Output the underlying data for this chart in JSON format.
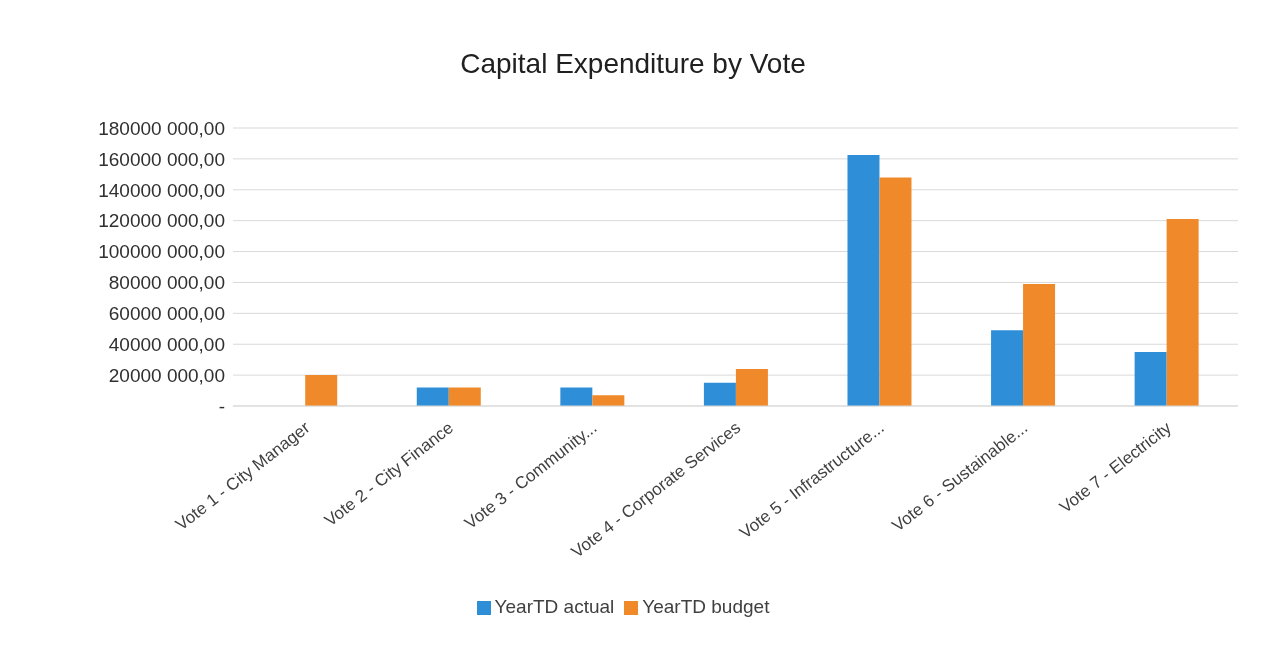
{
  "chart_data": {
    "type": "bar",
    "title": "Capital Expenditure by Vote",
    "categories": [
      "Vote 1 - City Manager",
      "Vote 2 - City Finance",
      "Vote 3 - Community...",
      "Vote 4 - Corporate Services",
      "Vote 5 - Infrastructure...",
      "Vote 6 - Sustainable...",
      "Vote 7 - Electricity"
    ],
    "series": [
      {
        "name": "YearTD actual",
        "color": "#2e8fd8",
        "values": [
          0,
          12000000,
          12000000,
          15000000,
          162500000,
          49000000,
          35000000
        ]
      },
      {
        "name": "YearTD budget",
        "color": "#f0892a",
        "values": [
          20000000,
          12000000,
          7000000,
          24000000,
          148000000,
          79000000,
          121000000
        ]
      }
    ],
    "ylim": [
      0,
      180000000
    ],
    "yticks": [
      {
        "value": 0,
        "label": "-"
      },
      {
        "value": 20000000,
        "label": "20000 000,00"
      },
      {
        "value": 40000000,
        "label": "40000 000,00"
      },
      {
        "value": 60000000,
        "label": "60000 000,00"
      },
      {
        "value": 80000000,
        "label": "80000 000,00"
      },
      {
        "value": 100000000,
        "label": "100000 000,00"
      },
      {
        "value": 120000000,
        "label": "120000 000,00"
      },
      {
        "value": 140000000,
        "label": "140000 000,00"
      },
      {
        "value": 160000000,
        "label": "160000 000,00"
      },
      {
        "value": 180000000,
        "label": "180000 000,00"
      }
    ],
    "grid": "y",
    "legend": "bottom"
  }
}
